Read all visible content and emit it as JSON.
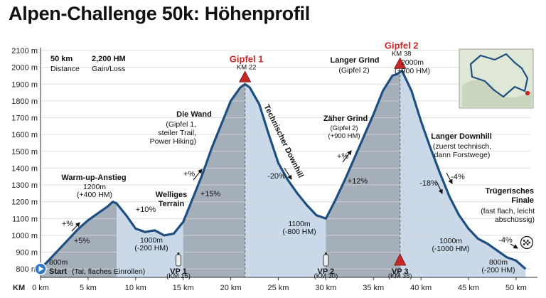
{
  "title": "Alpen-Challenge 50k: Höhenprofil",
  "chart_data": {
    "type": "area",
    "title": "Alpen-Challenge 50k: Höhenprofil",
    "xlabel": "KM",
    "ylabel": "",
    "xlim": [
      0,
      51.5
    ],
    "ylim": [
      750,
      2100
    ],
    "x_ticks": [
      0,
      5,
      10,
      15,
      20,
      25,
      30,
      35,
      40,
      45,
      50
    ],
    "y_ticks": [
      800,
      900,
      1000,
      1100,
      1200,
      1300,
      1400,
      1500,
      1600,
      1700,
      1800,
      1900,
      2000,
      2100
    ],
    "x_tick_format": "{v} km",
    "y_tick_format": "{v} m",
    "x_axis_prefix": "KM",
    "colors": {
      "fill": "#c9d9e9",
      "fill_dark": "#9ea7b2",
      "line": "#1f4e80",
      "accent": "#c62828"
    },
    "series": [
      {
        "x": [
          0,
          1,
          2,
          3,
          4,
          5,
          6,
          7,
          7.6,
          8,
          9,
          10,
          11,
          12,
          13,
          14,
          15,
          16,
          17,
          18,
          19,
          20,
          20.5,
          21,
          21.5,
          22,
          23,
          24,
          25,
          26,
          27,
          28,
          29,
          30,
          31,
          32,
          33,
          34,
          35,
          36,
          37,
          37.5,
          38,
          39,
          40,
          41,
          42,
          43,
          44,
          45,
          46,
          47,
          48,
          49,
          50,
          51
        ],
        "values": [
          800,
          860,
          920,
          980,
          1040,
          1090,
          1130,
          1170,
          1200,
          1190,
          1120,
          1040,
          1020,
          1030,
          1000,
          1010,
          1080,
          1220,
          1360,
          1520,
          1660,
          1800,
          1840,
          1880,
          1900,
          1880,
          1780,
          1600,
          1430,
          1330,
          1250,
          1180,
          1120,
          1100,
          1210,
          1330,
          1460,
          1590,
          1720,
          1860,
          1950,
          1960,
          1980,
          1860,
          1680,
          1520,
          1370,
          1230,
          1120,
          1040,
          980,
          950,
          910,
          870,
          850,
          800
        ]
      }
    ],
    "shaded_segments": [
      [
        0,
        8
      ],
      [
        15,
        21.5
      ],
      [
        30,
        37.8
      ]
    ],
    "peaks": [
      {
        "x": 21.5,
        "elev": 1900,
        "name": "Gipfel 1",
        "km": "KM 22"
      },
      {
        "x": 37.8,
        "elev": 1980,
        "name": "Gipfel 2",
        "km": "KM 38"
      }
    ],
    "aid_stations": [
      {
        "x": 14.5,
        "name": "VP 1",
        "km": "(KM 15)",
        "marker": "bottle"
      },
      {
        "x": 30,
        "name": "VP 2",
        "km": "(KM 30)",
        "marker": "bottle"
      },
      {
        "x": 37.8,
        "name": "VP 3",
        "km": "(KM 38)",
        "marker": "triangle"
      }
    ],
    "stats": [
      {
        "value": "50 km",
        "label": "Distance"
      },
      {
        "value": "2,200 HM",
        "label": "Gain/Loss"
      }
    ],
    "annotations": [
      {
        "lines": [
          "Warm-up-Anstieg"
        ],
        "bold": true
      },
      {
        "lines": [
          "1200m",
          "(+400 HM)"
        ]
      },
      {
        "lines": [
          "Welliges",
          "Terrain"
        ],
        "bold": true
      },
      {
        "lines": [
          "Die Wand"
        ],
        "bold": true
      },
      {
        "lines": [
          "(Gipfel 1,",
          "steiler Trail,",
          "Power Hiking)"
        ]
      },
      {
        "lines": [
          "Technischer Downhill"
        ],
        "bold": true
      },
      {
        "lines": [
          "Langer Grind"
        ],
        "bold": true
      },
      {
        "lines": [
          "(Gipfel 2)"
        ]
      },
      {
        "lines": [
          "2000m",
          "(+900 HM)"
        ]
      },
      {
        "lines": [
          "Zäher Grind"
        ],
        "bold": true
      },
      {
        "lines": [
          "(Gipfel 2)",
          "(+900 HM)"
        ]
      },
      {
        "lines": [
          "Langer Downhill"
        ],
        "bold": true
      },
      {
        "lines": [
          "(zuerst technisch,",
          "dann Forstwege)"
        ]
      },
      {
        "lines": [
          "Trügerisches",
          "Finale"
        ],
        "bold": true
      },
      {
        "lines": [
          "(fast flach, leicht",
          "abschüssig)"
        ]
      },
      {
        "lines": [
          "1000m",
          "(-200 HM)"
        ]
      },
      {
        "lines": [
          "1100m",
          "(-800 HM)"
        ]
      },
      {
        "lines": [
          "1000m",
          "(-1000 HM)"
        ]
      },
      {
        "lines": [
          "800m",
          "(-200 HM)"
        ]
      },
      {
        "lines": [
          "800m"
        ]
      },
      {
        "lines": [
          "Start (Tal, flaches Einrollen)"
        ]
      }
    ],
    "grades": [
      "+%",
      "+5%",
      "+10%",
      "+%",
      "+15%",
      "-20%",
      "+%",
      "+12%",
      "-18%",
      "-4%",
      "-4%"
    ]
  }
}
